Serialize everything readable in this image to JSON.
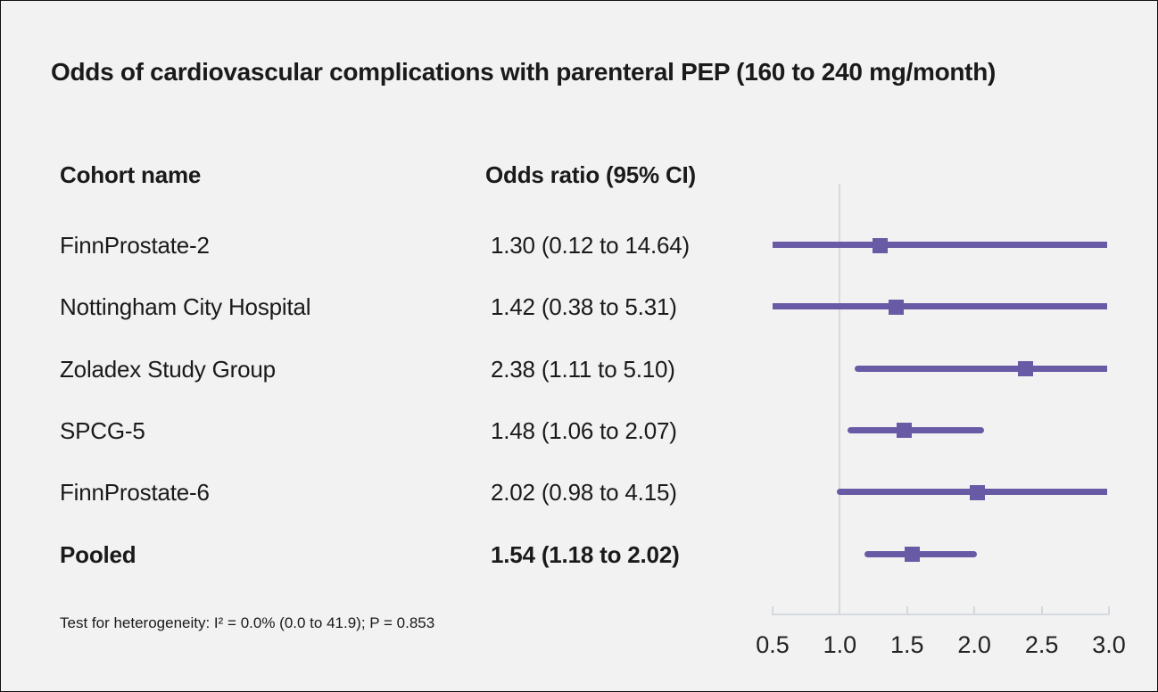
{
  "title": "Odds of cardiovascular complications with parenteral PEP (160 to 240 mg/month)",
  "columns": {
    "cohort": "Cohort name",
    "odds_ratio": "Odds ratio (95% CI)"
  },
  "footnote": "Test for heterogeneity: I² = 0.0% (0.0 to 41.9); P = 0.853",
  "accent_color": "#695AA6",
  "axis_color": "#d5d8dc",
  "background_color": "#f2f2f2",
  "chart_data": {
    "type": "forest",
    "title": "Odds of cardiovascular complications with parenteral PEP (160 to 240 mg/month)",
    "xlabel": "",
    "ylabel": "",
    "x_axis": {
      "min": 0.5,
      "max": 3.0,
      "tick_labels": [
        "0.5",
        "1.0",
        "1.5",
        "2.0",
        "2.5",
        "3.0"
      ],
      "tick_values": [
        0.5,
        1.0,
        1.5,
        2.0,
        2.5,
        3.0
      ],
      "reference_line": 1.0,
      "grid": false
    },
    "series": [
      {
        "name": "FinnProstate-2",
        "odds_ratio": 1.3,
        "ci_low": 0.12,
        "ci_high": 14.64,
        "display": "1.30 (0.12 to 14.64)",
        "pooled": false
      },
      {
        "name": "Nottingham City Hospital",
        "odds_ratio": 1.42,
        "ci_low": 0.38,
        "ci_high": 5.31,
        "display": "1.42 (0.38 to 5.31)",
        "pooled": false
      },
      {
        "name": "Zoladex Study Group",
        "odds_ratio": 2.38,
        "ci_low": 1.11,
        "ci_high": 5.1,
        "display": "2.38 (1.11 to 5.10)",
        "pooled": false
      },
      {
        "name": "SPCG-5",
        "odds_ratio": 1.48,
        "ci_low": 1.06,
        "ci_high": 2.07,
        "display": "1.48 (1.06 to 2.07)",
        "pooled": false
      },
      {
        "name": "FinnProstate-6",
        "odds_ratio": 2.02,
        "ci_low": 0.98,
        "ci_high": 4.15,
        "display": "2.02 (0.98 to 4.15)",
        "pooled": false
      },
      {
        "name": "Pooled",
        "odds_ratio": 1.54,
        "ci_low": 1.18,
        "ci_high": 2.02,
        "display": "1.54 (1.18 to 2.02)",
        "pooled": true
      }
    ],
    "heterogeneity_note": "Test for heterogeneity: I² = 0.0% (0.0 to 41.9); P = 0.853"
  }
}
